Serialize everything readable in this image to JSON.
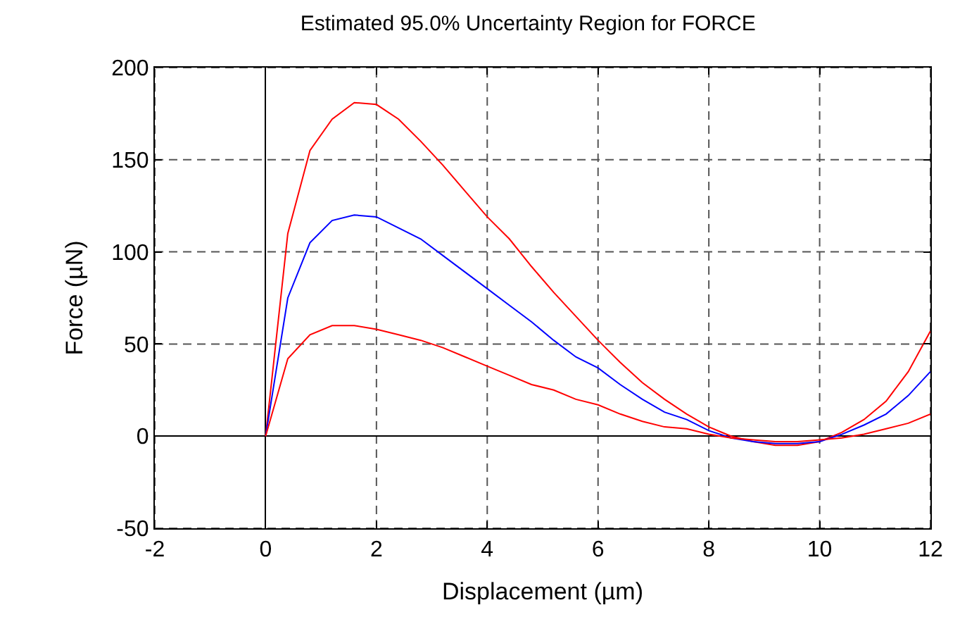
{
  "chart_data": {
    "type": "line",
    "title": "Estimated 95.0% Uncertainty Region for FORCE",
    "xlabel": "Displacement (µm)",
    "ylabel": "Force (µN)",
    "x": [
      0,
      0.4,
      0.8,
      1.2,
      1.6,
      2.0,
      2.4,
      2.8,
      3.2,
      3.6,
      4.0,
      4.4,
      4.8,
      5.2,
      5.6,
      6.0,
      6.4,
      6.8,
      7.2,
      7.6,
      8.0,
      8.4,
      8.8,
      9.2,
      9.6,
      10.0,
      10.4,
      10.8,
      11.2,
      11.6,
      12
    ],
    "series": [
      {
        "color": "#ff0000",
        "values": [
          0,
          110,
          155,
          172,
          181,
          180,
          172,
          160,
          147,
          133,
          119,
          107,
          92,
          78,
          65,
          52,
          40,
          29,
          20,
          12,
          5,
          0,
          -3,
          -5,
          -5,
          -3,
          2,
          9,
          19,
          35,
          57
        ]
      },
      {
        "color": "#0000ff",
        "values": [
          0,
          75,
          105,
          117,
          120,
          119,
          113,
          107,
          98,
          89,
          80,
          71,
          62,
          52,
          43,
          37,
          28,
          20,
          13,
          9,
          3,
          -1,
          -3,
          -4,
          -4,
          -3,
          1,
          6,
          12,
          22,
          35
        ]
      },
      {
        "color": "#ff0000",
        "values": [
          0,
          42,
          55,
          60,
          60,
          58,
          55,
          52,
          48,
          43,
          38,
          33,
          28,
          25,
          20,
          17,
          12,
          8,
          5,
          4,
          1,
          -1,
          -2,
          -3,
          -3,
          -2,
          -1,
          1,
          4,
          7,
          12
        ]
      }
    ],
    "xlim": [
      -2,
      12
    ],
    "xticks": [
      -2,
      0,
      2,
      4,
      6,
      8,
      10,
      12
    ],
    "ylim": [
      -50,
      200
    ],
    "yticks": [
      -50,
      0,
      50,
      100,
      150,
      200
    ],
    "grid": true,
    "marker": "none",
    "line_style": "solid"
  }
}
